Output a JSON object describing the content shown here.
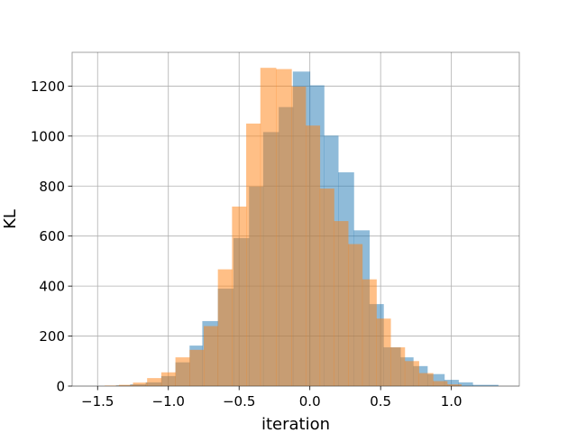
{
  "chart_data": {
    "type": "bar",
    "subtype": "overlapping-histogram",
    "title": "",
    "xlabel": "iteration",
    "ylabel": "KL",
    "xlim": [
      -1.68,
      1.48
    ],
    "ylim": [
      0,
      1335
    ],
    "xticks": [
      -1.5,
      -1.0,
      -0.5,
      0.0,
      0.5,
      1.0
    ],
    "xtick_labels": [
      "−1.5",
      "−1.0",
      "−0.5",
      "0.0",
      "0.5",
      "1.0"
    ],
    "yticks": [
      0,
      200,
      400,
      600,
      800,
      1000,
      1200
    ],
    "ytick_labels": [
      "0",
      "200",
      "400",
      "600",
      "800",
      "1000",
      "1200"
    ],
    "grid": true,
    "legend": "none",
    "series": [
      {
        "color": "#1f77b4",
        "alpha": 0.5,
        "bin_edges": [
          -1.37,
          -1.27,
          -1.16,
          -1.05,
          -0.95,
          -0.85,
          -0.76,
          -0.65,
          -0.54,
          -0.43,
          -0.33,
          -0.22,
          -0.12,
          0.0,
          0.1,
          0.2,
          0.31,
          0.42,
          0.52,
          0.64,
          0.73,
          0.83,
          0.95,
          1.05,
          1.15,
          1.33
        ],
        "counts": [
          3,
          7,
          15,
          40,
          95,
          162,
          260,
          390,
          592,
          798,
          1016,
          1116,
          1258,
          1203,
          1002,
          855,
          623,
          328,
          155,
          115,
          80,
          48,
          25,
          15,
          5
        ]
      },
      {
        "color": "#ff7f0e",
        "alpha": 0.5,
        "bin_edges": [
          -1.45,
          -1.35,
          -1.25,
          -1.15,
          -1.05,
          -0.95,
          -0.85,
          -0.75,
          -0.65,
          -0.55,
          -0.45,
          -0.35,
          -0.24,
          -0.13,
          -0.03,
          0.07,
          0.17,
          0.27,
          0.37,
          0.47,
          0.57,
          0.67,
          0.77,
          0.87,
          0.97,
          1.07
        ],
        "counts": [
          2,
          5,
          14,
          32,
          55,
          115,
          145,
          240,
          467,
          718,
          1050,
          1273,
          1268,
          1198,
          1042,
          790,
          660,
          568,
          427,
          270,
          155,
          100,
          52,
          20,
          7
        ]
      }
    ]
  }
}
